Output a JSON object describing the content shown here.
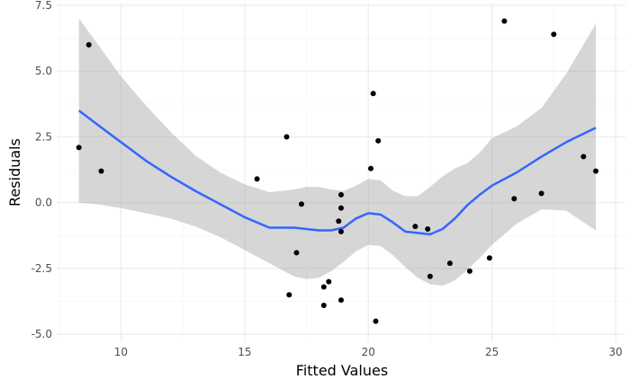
{
  "chart_data": {
    "type": "scatter",
    "title": "",
    "xlabel": "Fitted Values",
    "ylabel": "Residuals",
    "xlim": [
      7.4,
      30.4
    ],
    "ylim": [
      -5.3,
      7.6
    ],
    "x_ticks": [
      10,
      15,
      20,
      25,
      30
    ],
    "x_tick_labels": [
      "10",
      "15",
      "20",
      "25",
      "30"
    ],
    "y_ticks": [
      -5.0,
      -2.5,
      0.0,
      2.5,
      5.0,
      7.5
    ],
    "y_tick_labels": [
      "-5.0",
      "-2.5",
      "0.0",
      "2.5",
      "5.0",
      "7.5"
    ],
    "grid": true,
    "legend": "none",
    "colors": {
      "points": "#000000",
      "smooth_line": "#3366FF",
      "confidence_band": "#999999",
      "grid_major": "#EBEBEB",
      "grid_minor": "#F4F4F4"
    },
    "points": [
      {
        "x": 8.3,
        "y": 2.1
      },
      {
        "x": 8.7,
        "y": 6.0
      },
      {
        "x": 9.2,
        "y": 1.2
      },
      {
        "x": 15.5,
        "y": 0.9
      },
      {
        "x": 16.7,
        "y": 2.5
      },
      {
        "x": 16.8,
        "y": -3.5
      },
      {
        "x": 17.1,
        "y": -1.9
      },
      {
        "x": 17.3,
        "y": -0.05
      },
      {
        "x": 18.2,
        "y": -3.2
      },
      {
        "x": 18.2,
        "y": -3.9
      },
      {
        "x": 18.4,
        "y": -3.0
      },
      {
        "x": 18.8,
        "y": -0.7
      },
      {
        "x": 18.9,
        "y": 0.3
      },
      {
        "x": 18.9,
        "y": -0.2
      },
      {
        "x": 18.9,
        "y": -1.1
      },
      {
        "x": 18.9,
        "y": -3.7
      },
      {
        "x": 20.1,
        "y": 1.3
      },
      {
        "x": 20.2,
        "y": 4.15
      },
      {
        "x": 20.3,
        "y": -4.5
      },
      {
        "x": 20.4,
        "y": 2.35
      },
      {
        "x": 21.9,
        "y": -0.9
      },
      {
        "x": 22.4,
        "y": -1.0
      },
      {
        "x": 22.5,
        "y": -2.8
      },
      {
        "x": 23.3,
        "y": -2.3
      },
      {
        "x": 24.1,
        "y": -2.6
      },
      {
        "x": 24.9,
        "y": -2.1
      },
      {
        "x": 25.5,
        "y": 6.9
      },
      {
        "x": 25.9,
        "y": 0.15
      },
      {
        "x": 27.0,
        "y": 0.35
      },
      {
        "x": 27.5,
        "y": 6.4
      },
      {
        "x": 28.7,
        "y": 1.75
      },
      {
        "x": 29.2,
        "y": 1.2
      }
    ],
    "smooth": {
      "method": "loess",
      "x": [
        8.3,
        9,
        10,
        11,
        12,
        13,
        14,
        15,
        16,
        17,
        17.5,
        18,
        18.5,
        19,
        19.5,
        20,
        20.5,
        21,
        21.5,
        22,
        22.5,
        23,
        23.5,
        24,
        24.5,
        25,
        26,
        27,
        28,
        29.2
      ],
      "y": [
        3.5,
        3.0,
        2.3,
        1.6,
        1.0,
        0.45,
        -0.05,
        -0.55,
        -0.95,
        -0.95,
        -1.0,
        -1.05,
        -1.05,
        -0.95,
        -0.6,
        -0.4,
        -0.45,
        -0.75,
        -1.1,
        -1.15,
        -1.2,
        -1.0,
        -0.6,
        -0.1,
        0.3,
        0.65,
        1.15,
        1.75,
        2.3,
        2.85
      ],
      "lower": [
        0.0,
        -0.05,
        -0.2,
        -0.4,
        -0.6,
        -0.9,
        -1.3,
        -1.8,
        -2.3,
        -2.8,
        -2.9,
        -2.85,
        -2.6,
        -2.25,
        -1.85,
        -1.6,
        -1.65,
        -2.0,
        -2.45,
        -2.85,
        -3.1,
        -3.15,
        -2.95,
        -2.55,
        -2.1,
        -1.6,
        -0.8,
        -0.25,
        -0.3,
        -1.05
      ],
      "upper": [
        7.0,
        6.1,
        4.8,
        3.7,
        2.7,
        1.8,
        1.15,
        0.7,
        0.4,
        0.5,
        0.6,
        0.6,
        0.5,
        0.45,
        0.65,
        0.9,
        0.85,
        0.45,
        0.25,
        0.25,
        0.6,
        1.0,
        1.3,
        1.5,
        1.9,
        2.45,
        2.9,
        3.6,
        4.9,
        6.8
      ]
    }
  }
}
